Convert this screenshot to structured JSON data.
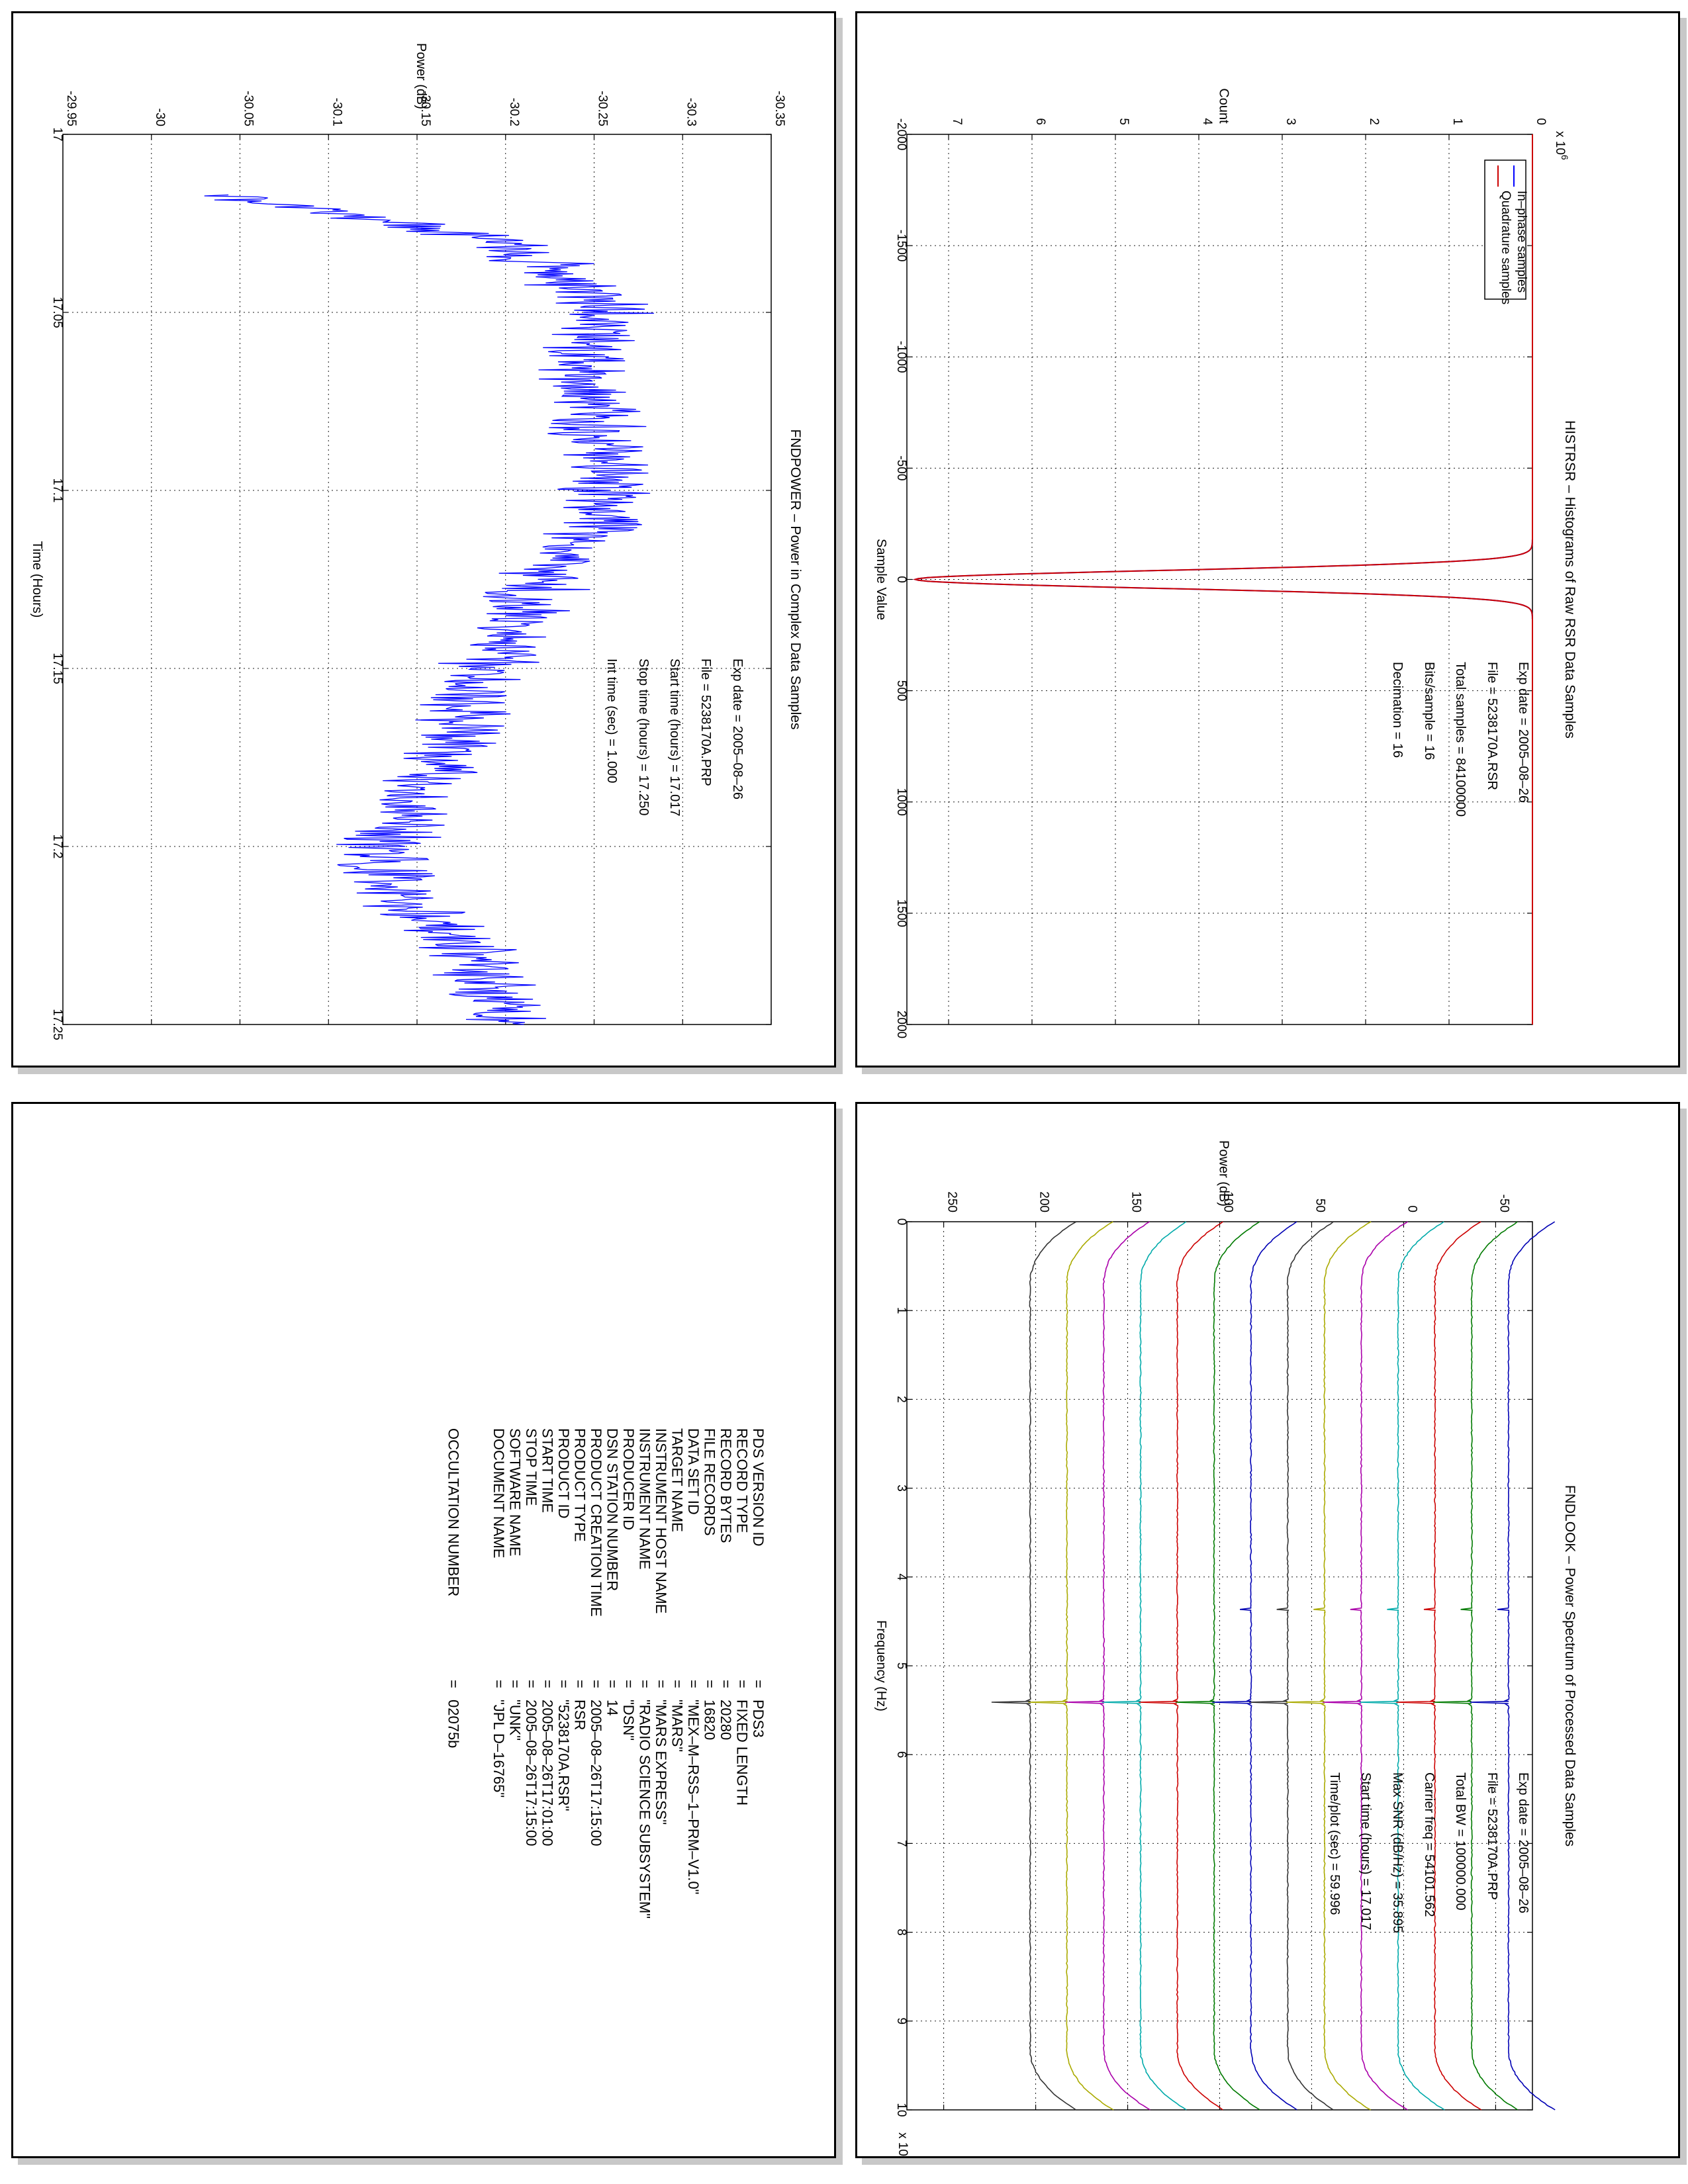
{
  "chart_data": [
    {
      "type": "line",
      "title": "FNDPOWER – Power in Complex Data Samples",
      "xlabel": "Time (Hours)",
      "ylabel": "Power (dB)",
      "xlim": [
        17,
        17.25
      ],
      "ylim": [
        -30.35,
        -29.95
      ],
      "x_ticks": [
        "17",
        "17.05",
        "17.1",
        "17.15",
        "17.2",
        "17.25"
      ],
      "y_ticks": [
        "-30.35",
        "-30.3",
        "-30.25",
        "-30.2",
        "-30.15",
        "-30.1",
        "-30.05",
        "-30",
        "-29.95"
      ],
      "grid": true,
      "series": [
        {
          "color": "#0000ff",
          "x": [
            17.017,
            17.03,
            17.05,
            17.065,
            17.08,
            17.095,
            17.11,
            17.125,
            17.14,
            17.155,
            17.17,
            17.185,
            17.2,
            17.215,
            17.23,
            17.25
          ],
          "y": [
            -30.04,
            -30.2,
            -30.26,
            -30.24,
            -30.25,
            -30.26,
            -30.25,
            -30.22,
            -30.2,
            -30.18,
            -30.17,
            -30.15,
            -30.13,
            -30.14,
            -30.18,
            -30.2
          ]
        }
      ],
      "annotations": [
        "Exp date = 2005–08–26",
        "File = 5238170A.PRP",
        "Start time (hours) = 17.017",
        "Stop time (hours) = 17.250",
        "Int time (sec) =    1.000"
      ]
    },
    {
      "type": "line",
      "title": "HISTRSR – Histograms of Raw RSR Data Samples",
      "xlabel": "Sample Value",
      "ylabel": "Count",
      "xlim": [
        -2000,
        2000
      ],
      "ylim": [
        0,
        7500000
      ],
      "y_multiplier": "x 10",
      "y_multiplier_exp": "6",
      "x_ticks": [
        "-2000",
        "-1500",
        "-1000",
        "-500",
        "0",
        "500",
        "1000",
        "1500",
        "2000"
      ],
      "y_ticks": [
        "0",
        "1",
        "2",
        "3",
        "4",
        "5",
        "6",
        "7"
      ],
      "grid": true,
      "legend": "top-right",
      "series": [
        {
          "name": "In–phase samples",
          "color": "#0000ff",
          "peak_x": 0,
          "peak_y": 7400000,
          "sigma": 40
        },
        {
          "name": "Quadrature samples",
          "color": "#cc0000",
          "peak_x": 0,
          "peak_y": 7400000,
          "sigma": 40
        }
      ],
      "annotations": [
        "Exp date = 2005–08–26",
        "File = 5238170A.RSR",
        "Total samples =  84100000",
        "Bits/sample  =        16",
        "Decimation   =        16"
      ]
    },
    {
      "type": "line",
      "title": "FNDLOOK – Power Spectrum of Processed Data Samples",
      "xlabel": "Frequency (Hz)",
      "ylabel": "Power (dB)",
      "xlim": [
        0,
        100000
      ],
      "ylim": [
        -70,
        270
      ],
      "x_multiplier": "x 10",
      "x_multiplier_exp": "4",
      "x_ticks": [
        "0",
        "1",
        "2",
        "3",
        "4",
        "5",
        "6",
        "7",
        "8",
        "9",
        "10"
      ],
      "y_ticks": [
        "-50",
        "0",
        "50",
        "100",
        "150",
        "200",
        "250"
      ],
      "grid": true,
      "series": [
        {
          "color": "#0000b4",
          "level": -57
        },
        {
          "color": "#007a00",
          "level": -37
        },
        {
          "color": "#cc0000",
          "level": -17
        },
        {
          "color": "#00aaaa",
          "level": 3
        },
        {
          "color": "#aa00aa",
          "level": 23
        },
        {
          "color": "#aaaa00",
          "level": 43
        },
        {
          "color": "#333333",
          "level": 63
        },
        {
          "color": "#0000b4",
          "level": 83
        },
        {
          "color": "#007a00",
          "level": 103
        },
        {
          "color": "#cc0000",
          "level": 123
        },
        {
          "color": "#00aaaa",
          "level": 143
        },
        {
          "color": "#aa00aa",
          "level": 163
        },
        {
          "color": "#aaaa00",
          "level": 183
        },
        {
          "color": "#333333",
          "level": 203
        }
      ],
      "carrier_hz": 54101.562,
      "annotations": [
        "Exp date = 2005–08–26",
        "File = 5238170A.PRP",
        "Total BW =    100000.000",
        "Carrier freq =    54101.562",
        "Max SNR (dB/Hz) =      35.895",
        "Start time (hours) =   17.017",
        "Time/plot (sec) =     59.996"
      ]
    }
  ],
  "pds_label": {
    "rows": [
      {
        "key": "PDS VERSION ID",
        "value": "PDS3"
      },
      {
        "key": "RECORD TYPE",
        "value": "FIXED LENGTH"
      },
      {
        "key": "RECORD BYTES",
        "value": "20280"
      },
      {
        "key": "FILE RECORDS",
        "value": "16820"
      },
      {
        "key": "DATA SET ID",
        "value": "\"MEX–M–RSS–1–PRM–V1.0\""
      },
      {
        "key": "TARGET NAME",
        "value": "\"MARS\""
      },
      {
        "key": "INSTRUMENT HOST NAME",
        "value": "\"MARS EXPRESS\""
      },
      {
        "key": "INSTRUMENT NAME",
        "value": "\"RADIO SCIENCE SUBSYSTEM\""
      },
      {
        "key": "PRODUCER ID",
        "value": "\"DSN\""
      },
      {
        "key": "DSN STATION NUMBER",
        "value": "14"
      },
      {
        "key": "PRODUCT CREATION TIME",
        "value": "2005–08–26T17:15:00"
      },
      {
        "key": "PRODUCT TYPE",
        "value": "RSR"
      },
      {
        "key": "PRODUCT ID",
        "value": "\"5238170A.RSR\""
      },
      {
        "key": "START TIME",
        "value": "2005–08–26T17:01:00"
      },
      {
        "key": "STOP TIME",
        "value": "2005–08–26T17:15:00"
      },
      {
        "key": "SOFTWARE NAME",
        "value": "\"UNK\""
      },
      {
        "key": "DOCUMENT NAME",
        "value": "\"JPL D–16765\""
      }
    ],
    "extra": {
      "key": "OCCULTATION NUMBER",
      "value": "02075b"
    },
    "equals": "="
  }
}
